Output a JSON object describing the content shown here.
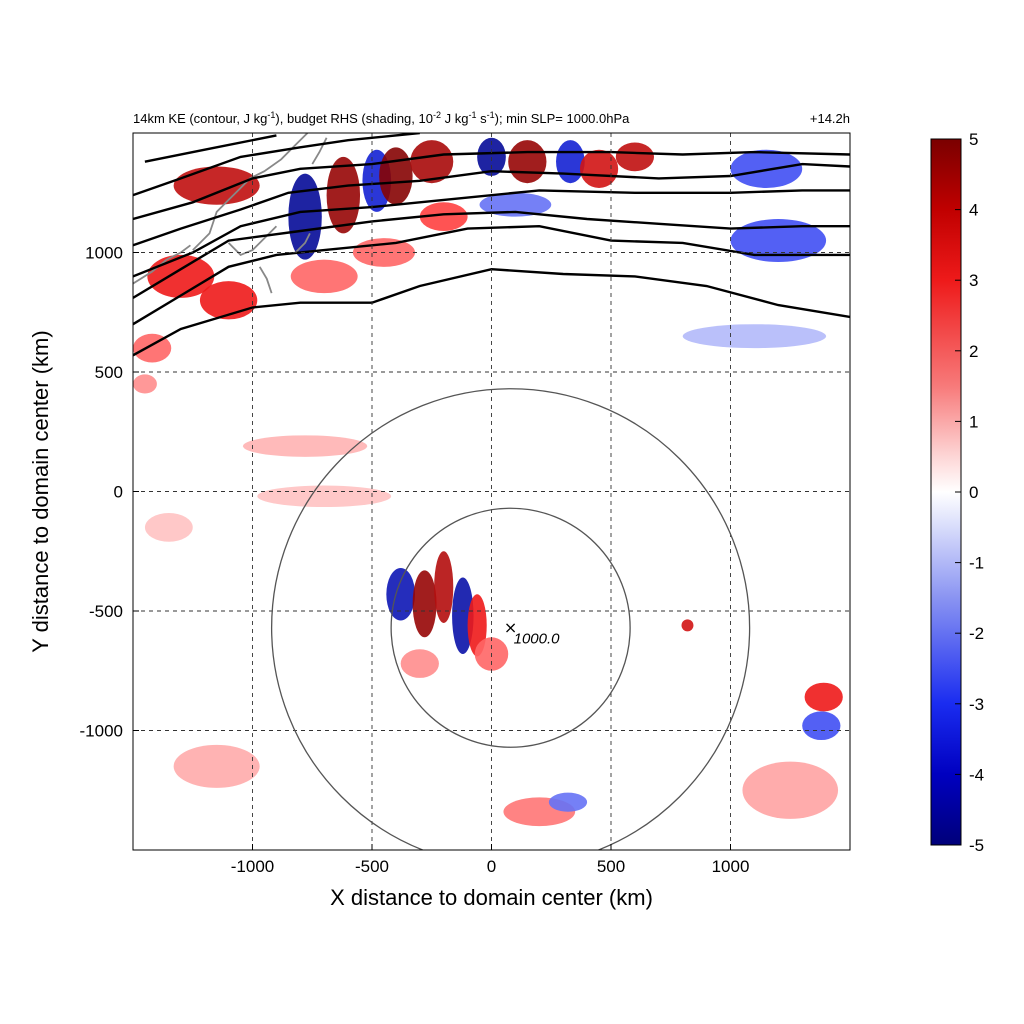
{
  "title": {
    "left_parts": [
      "14km KE (contour, J kg",
      "-1",
      "), budget RHS (shading, 10",
      "-2",
      " J kg",
      "-1",
      " s",
      "-1",
      "); min SLP= 1000.0hPa"
    ],
    "right": "+14.2h"
  },
  "colors": {
    "positive": "#e01010",
    "negative": "#1030e0",
    "neutral": "#ffffff",
    "contour": "#000000",
    "ring": "#555555",
    "coast": "#888888"
  },
  "chart_data": {
    "type": "heatmap",
    "xlabel": "X distance to domain center (km)",
    "ylabel": "Y distance to domain center (km)",
    "xlim": [
      -1500,
      1500
    ],
    "ylim": [
      -1500,
      1500
    ],
    "x_ticks": [
      -1000,
      -500,
      0,
      500,
      1000
    ],
    "y_ticks": [
      -1000,
      -500,
      0,
      500,
      1000
    ],
    "x_tick_labels": [
      "-1000",
      "-500",
      "0",
      "500",
      "1000"
    ],
    "y_tick_labels": [
      "-1000",
      "-500",
      "0",
      "500",
      "1000"
    ],
    "grid": true,
    "colorbar": {
      "min": -5,
      "max": 5,
      "ticks": [
        5,
        4,
        3,
        2,
        1,
        0,
        -1,
        -2,
        -3,
        -4,
        -5
      ],
      "tick_labels": [
        "5",
        "4",
        "3",
        "2",
        "1",
        "0",
        "-1",
        "-2",
        "-3",
        "-4",
        "-5"
      ],
      "colormap": "blue-white-red"
    },
    "storm_center": {
      "x": 80,
      "y": -570,
      "label": "1000.0"
    },
    "rings_km": [
      500,
      1000
    ],
    "ke_contours": [
      [
        [
          -1500,
          570
        ],
        [
          -1300,
          680
        ],
        [
          -1000,
          770
        ],
        [
          -800,
          790
        ],
        [
          -500,
          790
        ],
        [
          -300,
          860
        ],
        [
          0,
          930
        ],
        [
          300,
          910
        ],
        [
          600,
          900
        ],
        [
          900,
          860
        ],
        [
          1200,
          780
        ],
        [
          1500,
          730
        ]
      ],
      [
        [
          -1500,
          700
        ],
        [
          -1300,
          820
        ],
        [
          -1100,
          940
        ],
        [
          -900,
          990
        ],
        [
          -700,
          1010
        ],
        [
          -400,
          1040
        ],
        [
          -100,
          1100
        ],
        [
          200,
          1110
        ],
        [
          500,
          1050
        ],
        [
          800,
          1040
        ],
        [
          1100,
          990
        ],
        [
          1500,
          990
        ]
      ],
      [
        [
          -1500,
          810
        ],
        [
          -1300,
          930
        ],
        [
          -1100,
          1050
        ],
        [
          -800,
          1090
        ],
        [
          -500,
          1130
        ],
        [
          -200,
          1160
        ],
        [
          100,
          1170
        ],
        [
          400,
          1140
        ],
        [
          700,
          1120
        ],
        [
          1000,
          1100
        ],
        [
          1300,
          1110
        ],
        [
          1500,
          1110
        ]
      ],
      [
        [
          -1500,
          900
        ],
        [
          -1250,
          1000
        ],
        [
          -1050,
          1110
        ],
        [
          -800,
          1170
        ],
        [
          -500,
          1190
        ],
        [
          -200,
          1220
        ],
        [
          200,
          1260
        ],
        [
          600,
          1250
        ],
        [
          1000,
          1250
        ],
        [
          1300,
          1260
        ],
        [
          1500,
          1260
        ]
      ],
      [
        [
          -1500,
          1030
        ],
        [
          -1300,
          1100
        ],
        [
          -1050,
          1180
        ],
        [
          -850,
          1250
        ],
        [
          -600,
          1280
        ],
        [
          -300,
          1300
        ],
        [
          0,
          1340
        ],
        [
          300,
          1330
        ],
        [
          700,
          1310
        ],
        [
          1000,
          1320
        ],
        [
          1300,
          1370
        ],
        [
          1500,
          1360
        ]
      ],
      [
        [
          -1500,
          1140
        ],
        [
          -1250,
          1210
        ],
        [
          -1000,
          1310
        ],
        [
          -800,
          1350
        ],
        [
          -500,
          1370
        ],
        [
          -200,
          1410
        ],
        [
          150,
          1420
        ],
        [
          500,
          1420
        ],
        [
          800,
          1410
        ],
        [
          1100,
          1420
        ],
        [
          1500,
          1410
        ]
      ],
      [
        [
          -1500,
          1240
        ],
        [
          -1300,
          1310
        ],
        [
          -1050,
          1400
        ],
        [
          -800,
          1440
        ],
        [
          -600,
          1470
        ],
        [
          -300,
          1500
        ]
      ],
      [
        [
          -1450,
          1380
        ],
        [
          -1200,
          1430
        ],
        [
          -900,
          1490
        ]
      ]
    ],
    "coastlines": [
      [
        [
          -1500,
          870
        ],
        [
          -1420,
          920
        ],
        [
          -1360,
          970
        ],
        [
          -1300,
          1000
        ],
        [
          -1260,
          1030
        ]
      ],
      [
        [
          -1250,
          1010
        ],
        [
          -1180,
          1080
        ],
        [
          -1150,
          1170
        ],
        [
          -1100,
          1220
        ],
        [
          -1050,
          1270
        ],
        [
          -1010,
          1310
        ],
        [
          -950,
          1340
        ],
        [
          -880,
          1390
        ],
        [
          -820,
          1450
        ],
        [
          -770,
          1500
        ]
      ],
      [
        [
          -1100,
          1040
        ],
        [
          -1050,
          990
        ],
        [
          -1000,
          1010
        ],
        [
          -950,
          1060
        ],
        [
          -900,
          1110
        ]
      ],
      [
        [
          -970,
          940
        ],
        [
          -940,
          890
        ],
        [
          -920,
          830
        ]
      ],
      [
        [
          -820,
          1000
        ],
        [
          -780,
          1040
        ],
        [
          -760,
          1080
        ]
      ],
      [
        [
          -750,
          1370
        ],
        [
          -720,
          1420
        ],
        [
          -690,
          1480
        ]
      ]
    ],
    "features": [
      {
        "x": -380,
        "y": -430,
        "sx": 60,
        "sy": 110,
        "value": -4.0
      },
      {
        "x": -280,
        "y": -470,
        "sx": 50,
        "sy": 140,
        "value": 4.5
      },
      {
        "x": -200,
        "y": -400,
        "sx": 40,
        "sy": 150,
        "value": 4.0
      },
      {
        "x": -120,
        "y": -520,
        "sx": 45,
        "sy": 160,
        "value": -4.2
      },
      {
        "x": -60,
        "y": -560,
        "sx": 40,
        "sy": 130,
        "value": 3.0
      },
      {
        "x": 0,
        "y": -680,
        "sx": 70,
        "sy": 70,
        "value": 2.0
      },
      {
        "x": -300,
        "y": -720,
        "sx": 80,
        "sy": 60,
        "value": 1.5
      },
      {
        "x": 1390,
        "y": -860,
        "sx": 80,
        "sy": 60,
        "value": 3.0
      },
      {
        "x": 1380,
        "y": -980,
        "sx": 80,
        "sy": 60,
        "value": -2.5
      },
      {
        "x": 200,
        "y": -1340,
        "sx": 150,
        "sy": 60,
        "value": 1.8
      },
      {
        "x": 320,
        "y": -1300,
        "sx": 80,
        "sy": 40,
        "value": -2.0
      },
      {
        "x": 820,
        "y": -560,
        "sx": 25,
        "sy": 25,
        "value": 3.5
      },
      {
        "x": -780,
        "y": 190,
        "sx": 260,
        "sy": 45,
        "value": 1.0
      },
      {
        "x": -700,
        "y": -20,
        "sx": 280,
        "sy": 45,
        "value": 0.8
      },
      {
        "x": -1150,
        "y": -1150,
        "sx": 180,
        "sy": 90,
        "value": 1.1
      },
      {
        "x": 1250,
        "y": -1250,
        "sx": 200,
        "sy": 120,
        "value": 1.2
      },
      {
        "x": 1100,
        "y": 650,
        "sx": 300,
        "sy": 50,
        "value": -1.0
      },
      {
        "x": 1200,
        "y": 1050,
        "sx": 200,
        "sy": 90,
        "value": -2.5
      },
      {
        "x": 1150,
        "y": 1350,
        "sx": 150,
        "sy": 80,
        "value": -2.5
      },
      {
        "x": -1150,
        "y": 1280,
        "sx": 180,
        "sy": 80,
        "value": 3.8
      },
      {
        "x": -780,
        "y": 1150,
        "sx": 70,
        "sy": 180,
        "value": -4.5
      },
      {
        "x": -620,
        "y": 1240,
        "sx": 70,
        "sy": 160,
        "value": 4.5
      },
      {
        "x": -480,
        "y": 1300,
        "sx": 60,
        "sy": 130,
        "value": -3.5
      },
      {
        "x": -400,
        "y": 1320,
        "sx": 70,
        "sy": 120,
        "value": 4.8
      },
      {
        "x": -250,
        "y": 1380,
        "sx": 90,
        "sy": 90,
        "value": 4.2
      },
      {
        "x": 0,
        "y": 1400,
        "sx": 60,
        "sy": 80,
        "value": -4.5
      },
      {
        "x": 150,
        "y": 1380,
        "sx": 80,
        "sy": 90,
        "value": 4.5
      },
      {
        "x": 330,
        "y": 1380,
        "sx": 60,
        "sy": 90,
        "value": -3.5
      },
      {
        "x": 450,
        "y": 1350,
        "sx": 80,
        "sy": 80,
        "value": 3.5
      },
      {
        "x": 600,
        "y": 1400,
        "sx": 80,
        "sy": 60,
        "value": 3.8
      },
      {
        "x": -1300,
        "y": 900,
        "sx": 140,
        "sy": 90,
        "value": 3.0
      },
      {
        "x": -1100,
        "y": 800,
        "sx": 120,
        "sy": 80,
        "value": 3.0
      },
      {
        "x": -1420,
        "y": 600,
        "sx": 80,
        "sy": 60,
        "value": 2.0
      },
      {
        "x": -700,
        "y": 900,
        "sx": 140,
        "sy": 70,
        "value": 2.0
      },
      {
        "x": -450,
        "y": 1000,
        "sx": 130,
        "sy": 60,
        "value": 2.0
      },
      {
        "x": -200,
        "y": 1150,
        "sx": 100,
        "sy": 60,
        "value": 2.5
      },
      {
        "x": 100,
        "y": 1200,
        "sx": 150,
        "sy": 50,
        "value": -2.0
      },
      {
        "x": -1450,
        "y": 450,
        "sx": 50,
        "sy": 40,
        "value": 1.5
      },
      {
        "x": -1350,
        "y": -150,
        "sx": 100,
        "sy": 60,
        "value": 0.8
      }
    ]
  }
}
